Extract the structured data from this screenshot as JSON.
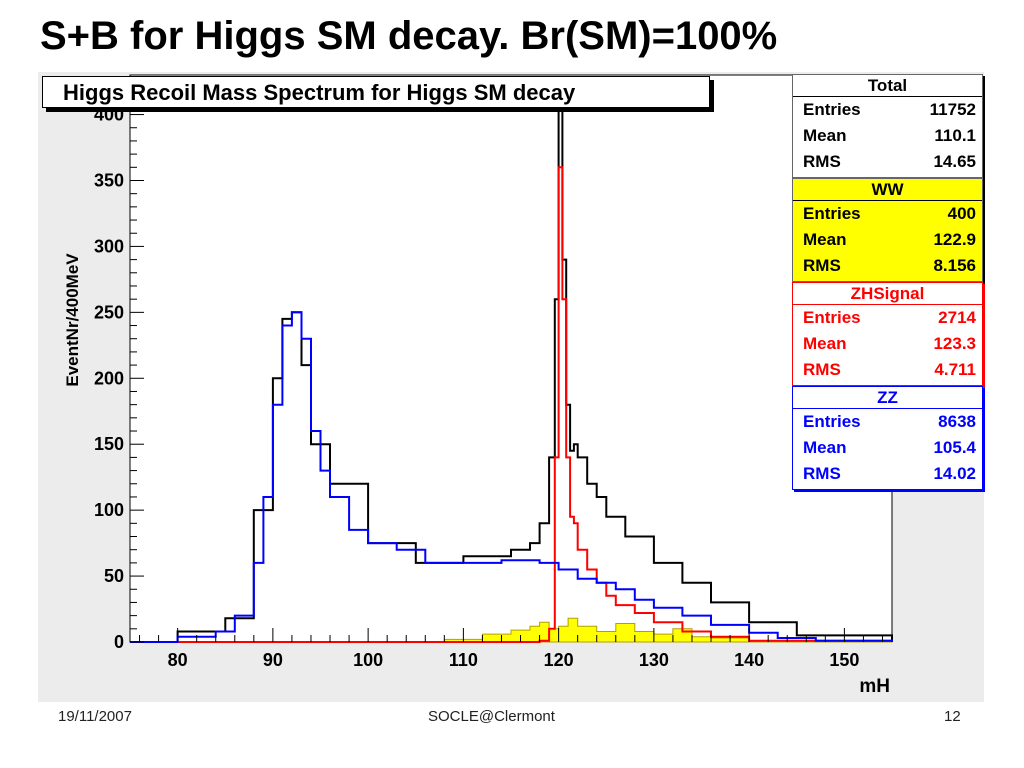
{
  "slide": {
    "title": "S+B for Higgs SM decay. Br(SM)=100%",
    "footer_date": "19/11/2007",
    "footer_center": "SOCLE@Clermont",
    "footer_page": "12"
  },
  "stats": [
    {
      "name": "Total",
      "color": "#000000",
      "bg": "#ffffff",
      "rows": [
        {
          "label": "Entries",
          "value": "11752"
        },
        {
          "label": "Mean",
          "value": "110.1"
        },
        {
          "label": "RMS",
          "value": "14.65"
        }
      ]
    },
    {
      "name": "WW",
      "color": "#000000",
      "bg": "#ffff00",
      "rows": [
        {
          "label": "Entries",
          "value": "400"
        },
        {
          "label": "Mean",
          "value": "122.9"
        },
        {
          "label": "RMS",
          "value": "8.156"
        }
      ]
    },
    {
      "name": "ZHSignal",
      "color": "#ff0000",
      "bg": "#ffffff",
      "rows": [
        {
          "label": "Entries",
          "value": "2714"
        },
        {
          "label": "Mean",
          "value": "123.3"
        },
        {
          "label": "RMS",
          "value": "4.711"
        }
      ]
    },
    {
      "name": "ZZ",
      "color": "#0000ff",
      "bg": "#ffffff",
      "rows": [
        {
          "label": "Entries",
          "value": "8638"
        },
        {
          "label": "Mean",
          "value": "105.4"
        },
        {
          "label": "RMS",
          "value": "14.02"
        }
      ]
    }
  ],
  "chart_data": {
    "type": "line",
    "title": "Higgs Recoil Mass Spectrum for Higgs SM decay",
    "xlabel": "mH",
    "ylabel": "EventNr/400MeV",
    "xlim": [
      75,
      155
    ],
    "ylim": [
      0,
      430
    ],
    "xticks": [
      80,
      90,
      100,
      110,
      120,
      130,
      140,
      150
    ],
    "yticks": [
      0,
      50,
      100,
      150,
      200,
      250,
      300,
      350,
      400
    ],
    "grid": false,
    "style": "step histogram",
    "series": [
      {
        "name": "Total",
        "color": "#000000",
        "x": [
          75,
          80,
          85,
          88,
          90,
          91,
          92,
          93,
          94,
          96,
          100,
          105,
          110,
          115,
          117,
          118,
          119,
          119.6,
          120,
          120.4,
          120.8,
          121.2,
          121.6,
          122,
          123,
          124,
          125,
          127,
          130,
          133,
          136,
          140,
          145,
          155
        ],
        "y": [
          0,
          8,
          18,
          100,
          200,
          245,
          250,
          210,
          150,
          120,
          75,
          60,
          65,
          70,
          75,
          90,
          140,
          260,
          420,
          290,
          180,
          145,
          150,
          140,
          120,
          110,
          95,
          80,
          60,
          45,
          30,
          15,
          5,
          0
        ]
      },
      {
        "name": "WW",
        "color": "#ffff00",
        "x": [
          75,
          108,
          112,
          115,
          117,
          118,
          119,
          120,
          121,
          122,
          124,
          126,
          128,
          130,
          132,
          134,
          136,
          140,
          155
        ],
        "y": [
          0,
          2,
          6,
          9,
          12,
          15,
          10,
          12,
          18,
          12,
          8,
          14,
          8,
          6,
          10,
          4,
          3,
          1,
          0
        ]
      },
      {
        "name": "ZHSignal",
        "color": "#ff0000",
        "x": [
          75,
          115,
          118,
          119,
          119.6,
          120,
          120.4,
          120.8,
          121.2,
          121.6,
          122,
          123,
          124,
          125,
          126,
          128,
          130,
          133,
          136,
          140,
          155
        ],
        "y": [
          0,
          0,
          1,
          10,
          140,
          360,
          260,
          140,
          95,
          90,
          70,
          55,
          45,
          35,
          28,
          22,
          15,
          8,
          4,
          1,
          0
        ]
      },
      {
        "name": "ZZ",
        "color": "#0000ff",
        "x": [
          75,
          80,
          84,
          86,
          88,
          89,
          90,
          91,
          92,
          93,
          94,
          95,
          96,
          98,
          100,
          103,
          106,
          110,
          114,
          118,
          120,
          122,
          124,
          126,
          128,
          130,
          133,
          136,
          140,
          143,
          147,
          155
        ],
        "y": [
          0,
          4,
          8,
          20,
          60,
          110,
          180,
          240,
          250,
          230,
          160,
          130,
          110,
          85,
          75,
          70,
          60,
          60,
          62,
          60,
          55,
          48,
          45,
          40,
          32,
          26,
          20,
          13,
          7,
          3,
          1,
          0
        ]
      }
    ]
  }
}
